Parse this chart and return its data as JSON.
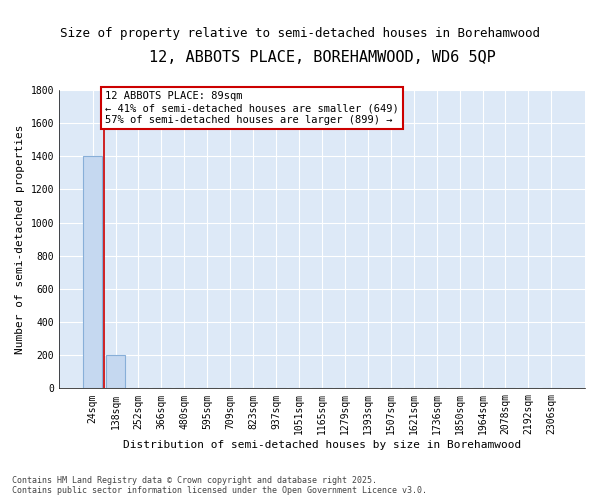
{
  "title": "12, ABBOTS PLACE, BOREHAMWOOD, WD6 5QP",
  "subtitle": "Size of property relative to semi-detached houses in Borehamwood",
  "xlabel": "Distribution of semi-detached houses by size in Borehamwood",
  "ylabel": "Number of semi-detached properties",
  "bar_values": [
    1400,
    200,
    0,
    0,
    0,
    0,
    0,
    0,
    0,
    0,
    0,
    0,
    0,
    0,
    0,
    0,
    0,
    0,
    0,
    0,
    0
  ],
  "bar_color": "#c5d8f0",
  "bar_edge_color": "#88afd8",
  "categories": [
    "24sqm",
    "138sqm",
    "252sqm",
    "366sqm",
    "480sqm",
    "595sqm",
    "709sqm",
    "823sqm",
    "937sqm",
    "1051sqm",
    "1165sqm",
    "1279sqm",
    "1393sqm",
    "1507sqm",
    "1621sqm",
    "1736sqm",
    "1850sqm",
    "1964sqm",
    "2078sqm",
    "2192sqm",
    "2306sqm"
  ],
  "ylim": [
    0,
    1800
  ],
  "yticks": [
    0,
    200,
    400,
    600,
    800,
    1000,
    1200,
    1400,
    1600,
    1800
  ],
  "property_line_color": "#cc0000",
  "annotation_text": "12 ABBOTS PLACE: 89sqm\n← 41% of semi-detached houses are smaller (649)\n57% of semi-detached houses are larger (899) →",
  "annotation_box_color": "#ffffff",
  "annotation_box_edge": "#cc0000",
  "plot_bg_color": "#dde9f7",
  "grid_color": "#ffffff",
  "fig_bg_color": "#ffffff",
  "footer_text": "Contains HM Land Registry data © Crown copyright and database right 2025.\nContains public sector information licensed under the Open Government Licence v3.0.",
  "title_fontsize": 11,
  "subtitle_fontsize": 9,
  "ylabel_fontsize": 8,
  "xlabel_fontsize": 8,
  "tick_fontsize": 7,
  "footer_fontsize": 6
}
